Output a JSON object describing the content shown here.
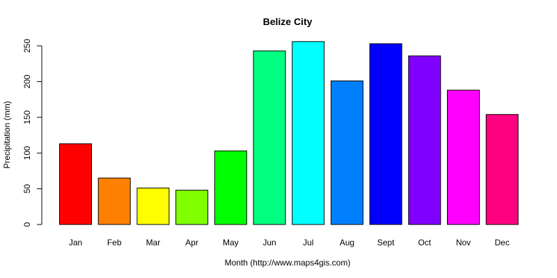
{
  "chart_data": {
    "type": "bar",
    "title": "Belize City",
    "xlabel": "Month (http://www.maps4gis.com)",
    "ylabel": "Precipitation (mm)",
    "categories": [
      "Jan",
      "Feb",
      "Mar",
      "Apr",
      "May",
      "Jun",
      "Jul",
      "Aug",
      "Sept",
      "Oct",
      "Nov",
      "Dec"
    ],
    "values": [
      113,
      65,
      51,
      48,
      103,
      243,
      256,
      201,
      253,
      236,
      188,
      154
    ],
    "colors": [
      "#ff0000",
      "#ff8000",
      "#ffff00",
      "#80ff00",
      "#00ff00",
      "#00ff80",
      "#00ffff",
      "#0080ff",
      "#0000ff",
      "#8000ff",
      "#ff00ff",
      "#ff0080"
    ],
    "ylim": [
      0,
      260
    ],
    "yticks": [
      0,
      50,
      100,
      150,
      200,
      250
    ],
    "grid": false,
    "legend": "none"
  }
}
